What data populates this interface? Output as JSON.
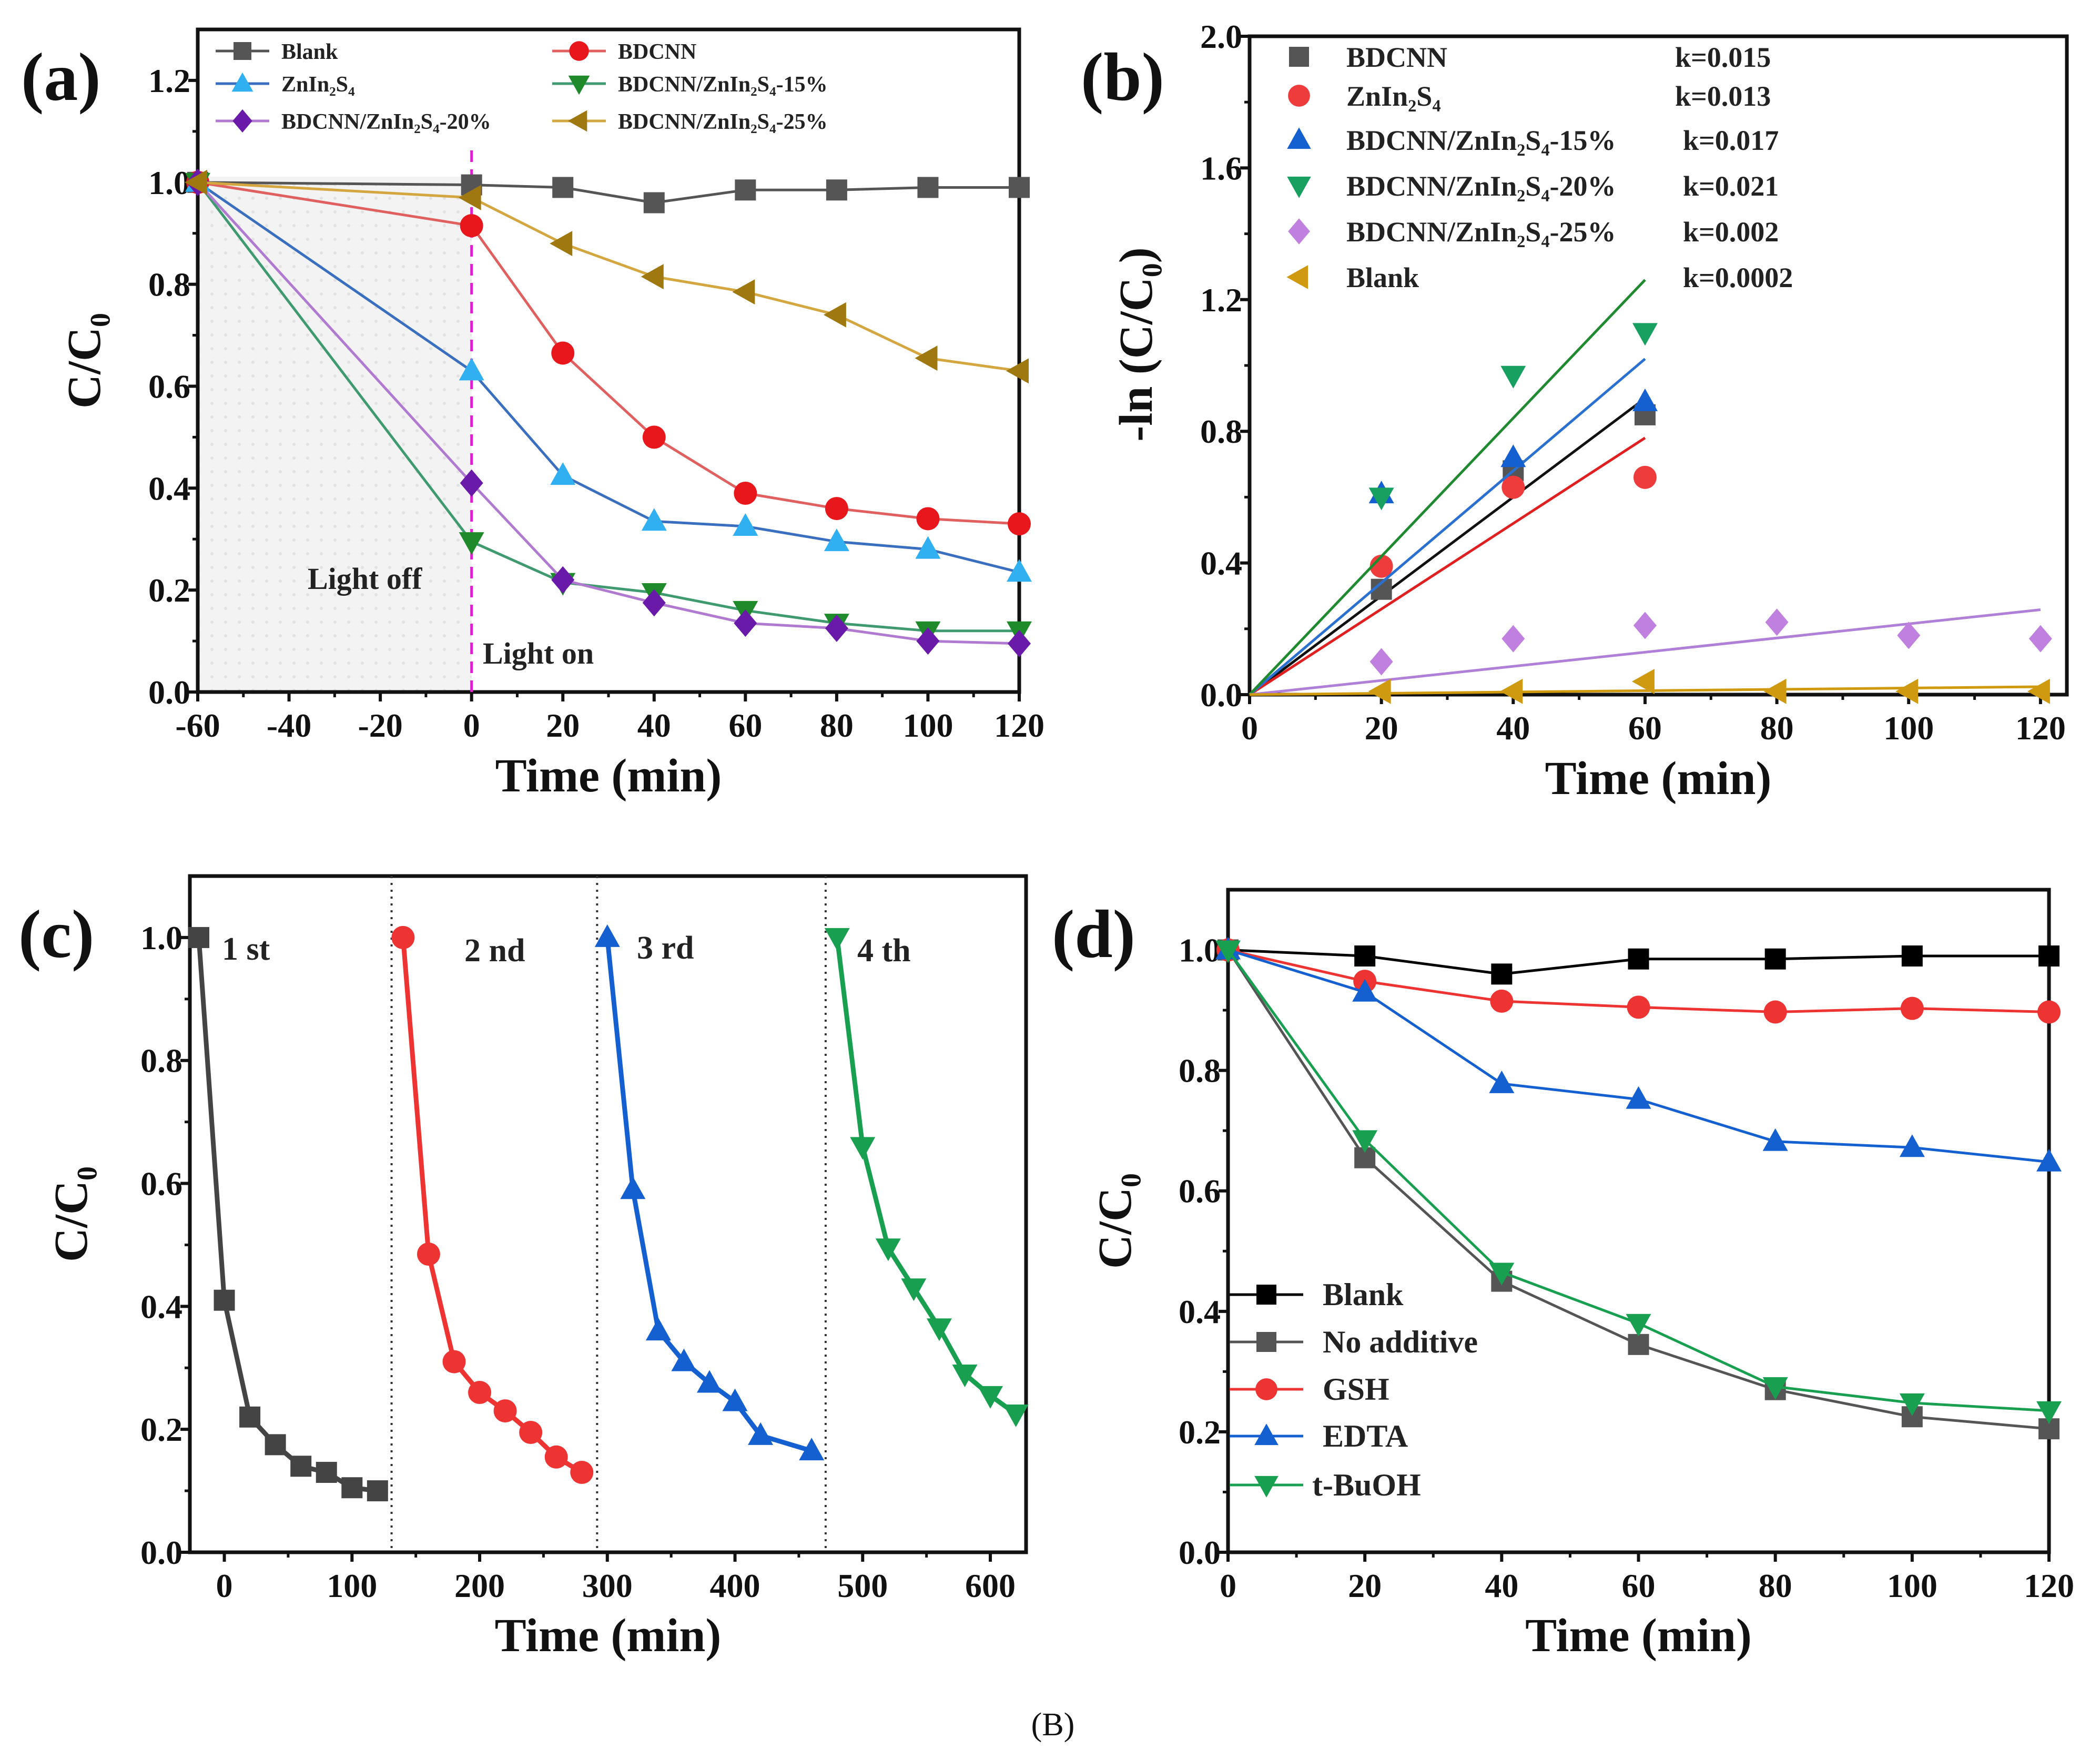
{
  "caption": "(B)",
  "chart_data": [
    {
      "panel": "(a)",
      "type": "line",
      "xlabel": "Time (min)",
      "ylabel": "C/C₀",
      "xlim": [
        -60,
        120
      ],
      "ylim": [
        0,
        1.3
      ],
      "xticks": [
        -60,
        -40,
        -20,
        0,
        20,
        40,
        60,
        80,
        100,
        120
      ],
      "yticks": [
        0.0,
        0.2,
        0.4,
        0.6,
        0.8,
        1.0,
        1.2
      ],
      "legend_placement": "top",
      "annotations": {
        "dark": "Light off",
        "light": "Light on",
        "light_on_x": 0
      },
      "x": [
        -60,
        0,
        20,
        40,
        60,
        80,
        100,
        120
      ],
      "series": [
        {
          "name": "Blank",
          "marker": "square",
          "color": "#555555",
          "line": "#555555",
          "values": [
            1.0,
            0.995,
            0.99,
            0.96,
            0.985,
            0.985,
            0.99,
            0.99
          ]
        },
        {
          "name": "BDCNN",
          "marker": "circle",
          "color": "#e8171c",
          "line": "#e06060",
          "values": [
            1.0,
            0.915,
            0.665,
            0.5,
            0.39,
            0.36,
            0.34,
            0.33
          ]
        },
        {
          "name": "ZnIn₂S₄",
          "marker": "triangle-up",
          "color": "#30b0f0",
          "line": "#3a6fc0",
          "values": [
            1.0,
            0.63,
            0.425,
            0.335,
            0.325,
            0.295,
            0.28,
            0.235
          ]
        },
        {
          "name": "BDCNN/ZnIn₂S₄-15%",
          "marker": "triangle-down",
          "color": "#1e8a2a",
          "line": "#3f9a70",
          "values": [
            1.0,
            0.295,
            0.215,
            0.195,
            0.16,
            0.135,
            0.12,
            0.12
          ]
        },
        {
          "name": "BDCNN/ZnIn₂S₄-20%",
          "marker": "diamond",
          "color": "#6a1aa8",
          "line": "#b07ad0",
          "values": [
            1.0,
            0.41,
            0.22,
            0.175,
            0.135,
            0.125,
            0.1,
            0.095
          ]
        },
        {
          "name": "BDCNN/ZnIn₂S₄-25%",
          "marker": "triangle-left",
          "color": "#a07810",
          "line": "#d4a640",
          "values": [
            1.0,
            0.97,
            0.88,
            0.815,
            0.785,
            0.74,
            0.655,
            0.63
          ]
        }
      ]
    },
    {
      "panel": "(b)",
      "type": "scatter",
      "xlabel": "Time (min)",
      "ylabel": "-ln (C/C₀)",
      "xlim": [
        0,
        124
      ],
      "ylim": [
        0,
        2.0
      ],
      "xticks": [
        0,
        20,
        40,
        60,
        80,
        100,
        120
      ],
      "yticks": [
        0.0,
        0.4,
        0.8,
        1.2,
        1.6,
        2.0
      ],
      "legend_placement": "top-left",
      "series": [
        {
          "name": "BDCNN",
          "k_label": "k=0.015",
          "k": 0.015,
          "fit_to": 60,
          "marker": "square",
          "color": "#555555",
          "line": "#111111",
          "x": [
            20,
            40,
            60
          ],
          "values": [
            0.32,
            0.68,
            0.85
          ]
        },
        {
          "name": "ZnIn₂S₄",
          "k_label": "k=0.013",
          "k": 0.013,
          "fit_to": 60,
          "marker": "circle",
          "color": "#ee3b3b",
          "line": "#e02020",
          "x": [
            20,
            40,
            60
          ],
          "values": [
            0.39,
            0.63,
            0.66
          ]
        },
        {
          "name": "BDCNN/ZnIn₂S₄-15%",
          "k_label": "k=0.017",
          "k": 0.017,
          "fit_to": 60,
          "marker": "triangle-up",
          "color": "#1560d0",
          "line": "#2a70d0",
          "x": [
            20,
            40,
            60
          ],
          "values": [
            0.61,
            0.72,
            0.89
          ]
        },
        {
          "name": "BDCNN/ZnIn₂S₄-20%",
          "k_label": "k=0.021",
          "k": 0.021,
          "fit_to": 60,
          "marker": "triangle-down",
          "color": "#18a060",
          "line": "#208a30",
          "x": [
            20,
            40,
            60
          ],
          "values": [
            0.6,
            0.97,
            1.1
          ]
        },
        {
          "name": "BDCNN/ZnIn₂S₄-25%",
          "k_label": "k=0.002",
          "k": 0.00215,
          "fit_to": 120,
          "marker": "diamond",
          "color": "#c080e0",
          "line": "#b080d8",
          "x": [
            20,
            40,
            60,
            80,
            100,
            120
          ],
          "values": [
            0.1,
            0.17,
            0.21,
            0.22,
            0.18,
            0.17
          ]
        },
        {
          "name": "Blank",
          "k_label": "k=0.0002",
          "k": 0.0002,
          "fit_to": 120,
          "marker": "triangle-left",
          "color": "#d09a10",
          "line": "#d09a10",
          "x": [
            20,
            40,
            60,
            80,
            100,
            120
          ],
          "values": [
            0.01,
            0.01,
            0.04,
            0.01,
            0.01,
            0.01
          ]
        }
      ]
    },
    {
      "panel": "(c)",
      "type": "line",
      "xlabel": "Time (min)",
      "ylabel": "C/C₀",
      "xlim": [
        -27,
        628
      ],
      "ylim": [
        0,
        1.1
      ],
      "xticks": [
        0,
        100,
        200,
        300,
        400,
        500,
        600
      ],
      "yticks": [
        0.0,
        0.2,
        0.4,
        0.6,
        0.8,
        1.0
      ],
      "cycle_dividers": [
        131,
        292,
        471
      ],
      "series": [
        {
          "name": "1 st",
          "marker": "square",
          "color": "#444444",
          "line": "#444444",
          "x": [
            -20,
            0,
            20,
            40,
            60,
            80,
            100,
            120
          ],
          "values": [
            1.0,
            0.41,
            0.22,
            0.175,
            0.14,
            0.13,
            0.105,
            0.1
          ]
        },
        {
          "name": "2 nd",
          "marker": "circle",
          "color": "#ee3333",
          "line": "#ee3333",
          "x": [
            140,
            160,
            180,
            200,
            220,
            240,
            260,
            280
          ],
          "values": [
            1.0,
            0.485,
            0.31,
            0.26,
            0.23,
            0.195,
            0.155,
            0.13
          ]
        },
        {
          "name": "3 rd",
          "marker": "triangle-up",
          "color": "#1560d0",
          "line": "#1560d0",
          "x": [
            300,
            320,
            340,
            360,
            380,
            400,
            420,
            460
          ],
          "values": [
            1.0,
            0.59,
            0.36,
            0.31,
            0.275,
            0.245,
            0.19,
            0.165
          ]
        },
        {
          "name": "4 th",
          "marker": "triangle-down",
          "color": "#18a050",
          "line": "#18a050",
          "x": [
            480,
            500,
            520,
            540,
            560,
            580,
            600,
            620
          ],
          "values": [
            1.0,
            0.66,
            0.495,
            0.43,
            0.365,
            0.29,
            0.255,
            0.225
          ]
        }
      ]
    },
    {
      "panel": "(d)",
      "type": "line",
      "xlabel": "Time (min)",
      "ylabel": "C/C₀",
      "xlim": [
        0,
        120
      ],
      "ylim": [
        0,
        1.1
      ],
      "xticks": [
        0,
        20,
        40,
        60,
        80,
        100,
        120
      ],
      "yticks": [
        0.0,
        0.2,
        0.4,
        0.6,
        0.8,
        1.0
      ],
      "legend_placement": "lower-left",
      "x": [
        0,
        20,
        40,
        60,
        80,
        100,
        120
      ],
      "series": [
        {
          "name": "Blank",
          "marker": "square",
          "color": "#000000",
          "line": "#000000",
          "values": [
            1.0,
            0.99,
            0.96,
            0.985,
            0.985,
            0.99,
            0.99
          ]
        },
        {
          "name": "No additive",
          "marker": "square",
          "color": "#555555",
          "line": "#555555",
          "values": [
            1.0,
            0.655,
            0.45,
            0.345,
            0.27,
            0.225,
            0.205
          ]
        },
        {
          "name": "GSH",
          "marker": "circle",
          "color": "#ee3333",
          "line": "#ee3333",
          "values": [
            1.0,
            0.948,
            0.915,
            0.905,
            0.897,
            0.903,
            0.897
          ]
        },
        {
          "name": "EDTA",
          "marker": "triangle-up",
          "color": "#1560d0",
          "line": "#1560d0",
          "values": [
            1.0,
            0.93,
            0.778,
            0.752,
            0.682,
            0.672,
            0.648
          ]
        },
        {
          "name": "t-BuOH",
          "marker": "triangle-down",
          "color": "#18a050",
          "line": "#18a050",
          "values": [
            1.0,
            0.685,
            0.465,
            0.38,
            0.275,
            0.248,
            0.235
          ]
        }
      ]
    }
  ]
}
